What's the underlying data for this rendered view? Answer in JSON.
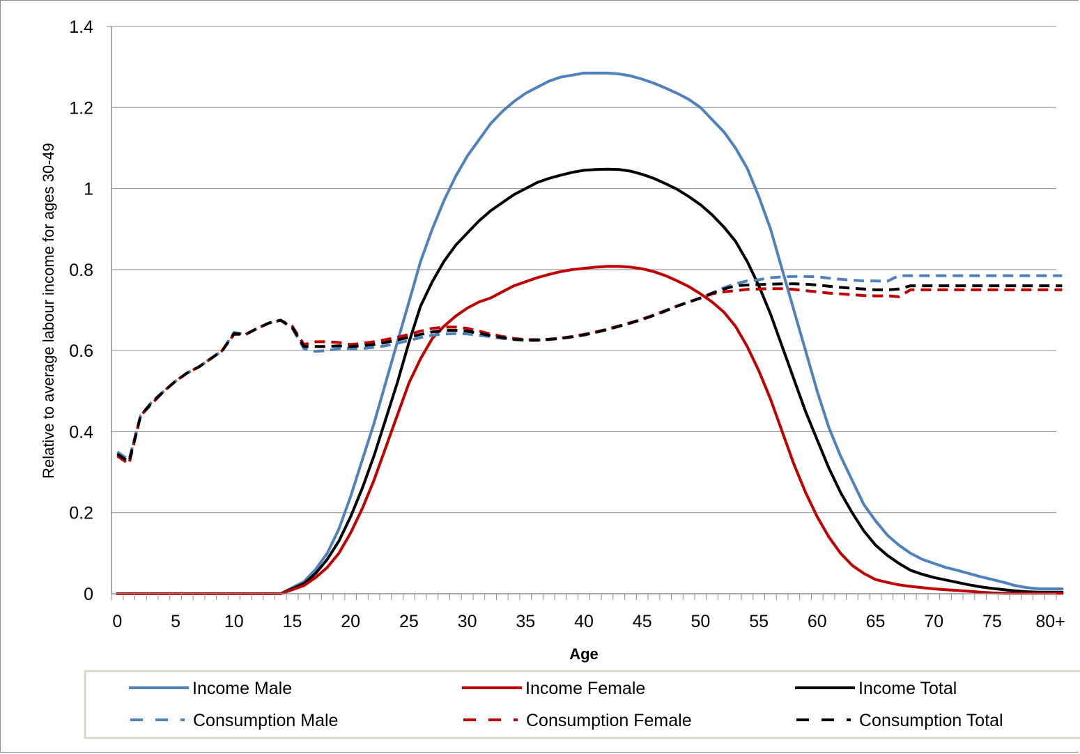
{
  "chart_data": {
    "type": "line",
    "title": "",
    "xlabel": "Age",
    "ylabel": "Relative to average labour income for ages 30-49",
    "x_ticks": [
      "0",
      "5",
      "10",
      "15",
      "20",
      "25",
      "30",
      "35",
      "40",
      "45",
      "50",
      "55",
      "60",
      "65",
      "70",
      "75",
      "80+"
    ],
    "y_ticks": [
      "0",
      "0.2",
      "0.4",
      "0.6",
      "0.8",
      "1",
      "1.2",
      "1.4"
    ],
    "xlim": [
      0,
      81
    ],
    "ylim": [
      0,
      1.4
    ],
    "grid": "horizontal",
    "legend_position": "bottom",
    "x": [
      0,
      1,
      2,
      3,
      4,
      5,
      6,
      7,
      8,
      9,
      10,
      11,
      12,
      13,
      14,
      15,
      16,
      17,
      18,
      19,
      20,
      21,
      22,
      23,
      24,
      25,
      26,
      27,
      28,
      29,
      30,
      31,
      32,
      33,
      34,
      35,
      36,
      37,
      38,
      39,
      40,
      41,
      42,
      43,
      44,
      45,
      46,
      47,
      48,
      49,
      50,
      51,
      52,
      53,
      54,
      55,
      56,
      57,
      58,
      59,
      60,
      61,
      62,
      63,
      64,
      65,
      66,
      67,
      68,
      69,
      70,
      71,
      72,
      73,
      74,
      75,
      76,
      77,
      78,
      79,
      80,
      81
    ],
    "series": [
      {
        "name": "Income Male",
        "color": "#4f81bd",
        "dash": false,
        "values": [
          0,
          0,
          0,
          0,
          0,
          0,
          0,
          0,
          0,
          0,
          0,
          0,
          0,
          0,
          0,
          0.015,
          0.03,
          0.06,
          0.1,
          0.16,
          0.24,
          0.33,
          0.42,
          0.52,
          0.62,
          0.72,
          0.82,
          0.9,
          0.97,
          1.03,
          1.08,
          1.12,
          1.16,
          1.19,
          1.215,
          1.235,
          1.25,
          1.265,
          1.275,
          1.28,
          1.285,
          1.285,
          1.285,
          1.283,
          1.278,
          1.27,
          1.26,
          1.248,
          1.235,
          1.22,
          1.2,
          1.17,
          1.14,
          1.1,
          1.05,
          0.98,
          0.9,
          0.8,
          0.7,
          0.6,
          0.5,
          0.41,
          0.34,
          0.28,
          0.22,
          0.18,
          0.145,
          0.12,
          0.1,
          0.085,
          0.075,
          0.065,
          0.058,
          0.05,
          0.042,
          0.035,
          0.028,
          0.02,
          0.015,
          0.012,
          0.012,
          0.012
        ]
      },
      {
        "name": "Income Female",
        "color": "#c00000",
        "dash": false,
        "values": [
          0,
          0,
          0,
          0,
          0,
          0,
          0,
          0,
          0,
          0,
          0,
          0,
          0,
          0,
          0,
          0.01,
          0.02,
          0.04,
          0.065,
          0.1,
          0.15,
          0.21,
          0.28,
          0.36,
          0.44,
          0.52,
          0.58,
          0.63,
          0.66,
          0.685,
          0.705,
          0.72,
          0.73,
          0.745,
          0.76,
          0.77,
          0.78,
          0.788,
          0.795,
          0.8,
          0.803,
          0.806,
          0.808,
          0.808,
          0.806,
          0.802,
          0.795,
          0.785,
          0.772,
          0.758,
          0.74,
          0.72,
          0.695,
          0.66,
          0.61,
          0.55,
          0.48,
          0.4,
          0.32,
          0.25,
          0.19,
          0.14,
          0.1,
          0.07,
          0.05,
          0.035,
          0.028,
          0.022,
          0.018,
          0.015,
          0.012,
          0.01,
          0.008,
          0.006,
          0.004,
          0.002,
          0.001,
          0.001,
          0.001,
          0.001,
          0.001,
          0.001
        ]
      },
      {
        "name": "Income Total",
        "color": "#000000",
        "dash": false,
        "values": [
          0,
          0,
          0,
          0,
          0,
          0,
          0,
          0,
          0,
          0,
          0,
          0,
          0,
          0,
          0,
          0.012,
          0.025,
          0.05,
          0.085,
          0.13,
          0.19,
          0.26,
          0.34,
          0.43,
          0.52,
          0.62,
          0.71,
          0.77,
          0.82,
          0.86,
          0.89,
          0.92,
          0.945,
          0.965,
          0.985,
          1.0,
          1.015,
          1.025,
          1.033,
          1.04,
          1.045,
          1.047,
          1.048,
          1.047,
          1.043,
          1.035,
          1.025,
          1.012,
          0.998,
          0.98,
          0.96,
          0.935,
          0.905,
          0.87,
          0.82,
          0.76,
          0.69,
          0.61,
          0.53,
          0.45,
          0.38,
          0.31,
          0.25,
          0.2,
          0.155,
          0.12,
          0.095,
          0.075,
          0.058,
          0.048,
          0.04,
          0.034,
          0.028,
          0.022,
          0.017,
          0.013,
          0.01,
          0.007,
          0.005,
          0.004,
          0.004,
          0.004
        ]
      },
      {
        "name": "Consumption Male",
        "color": "#4f81bd",
        "dash": true,
        "values": [
          0.35,
          0.33,
          0.44,
          0.475,
          0.5,
          0.525,
          0.545,
          0.56,
          0.58,
          0.6,
          0.645,
          0.64,
          0.655,
          0.668,
          0.675,
          0.655,
          0.605,
          0.598,
          0.6,
          0.605,
          0.605,
          0.605,
          0.608,
          0.612,
          0.618,
          0.625,
          0.632,
          0.638,
          0.641,
          0.642,
          0.641,
          0.638,
          0.634,
          0.63,
          0.627,
          0.625,
          0.625,
          0.627,
          0.63,
          0.634,
          0.638,
          0.645,
          0.652,
          0.66,
          0.668,
          0.677,
          0.687,
          0.698,
          0.71,
          0.72,
          0.73,
          0.742,
          0.755,
          0.765,
          0.772,
          0.775,
          0.78,
          0.782,
          0.783,
          0.783,
          0.782,
          0.779,
          0.776,
          0.774,
          0.772,
          0.772,
          0.771,
          0.785,
          0.785,
          0.785,
          0.785,
          0.785,
          0.785,
          0.785,
          0.785,
          0.785,
          0.785,
          0.785,
          0.785,
          0.785,
          0.785,
          0.785
        ]
      },
      {
        "name": "Consumption Female",
        "color": "#c00000",
        "dash": true,
        "values": [
          0.34,
          0.32,
          0.44,
          0.47,
          0.5,
          0.525,
          0.545,
          0.56,
          0.58,
          0.6,
          0.64,
          0.64,
          0.655,
          0.668,
          0.675,
          0.66,
          0.615,
          0.622,
          0.622,
          0.62,
          0.615,
          0.618,
          0.622,
          0.627,
          0.633,
          0.64,
          0.648,
          0.655,
          0.658,
          0.658,
          0.655,
          0.648,
          0.641,
          0.635,
          0.63,
          0.627,
          0.627,
          0.628,
          0.631,
          0.635,
          0.64,
          0.646,
          0.653,
          0.661,
          0.669,
          0.678,
          0.688,
          0.699,
          0.71,
          0.72,
          0.73,
          0.74,
          0.745,
          0.748,
          0.751,
          0.752,
          0.753,
          0.753,
          0.751,
          0.748,
          0.745,
          0.742,
          0.74,
          0.738,
          0.736,
          0.735,
          0.735,
          0.733,
          0.75,
          0.75,
          0.75,
          0.75,
          0.75,
          0.75,
          0.75,
          0.75,
          0.75,
          0.75,
          0.75,
          0.75,
          0.75,
          0.75
        ]
      },
      {
        "name": "Consumption Total",
        "color": "#000000",
        "dash": true,
        "values": [
          0.345,
          0.325,
          0.44,
          0.473,
          0.5,
          0.525,
          0.545,
          0.56,
          0.58,
          0.6,
          0.642,
          0.64,
          0.655,
          0.668,
          0.675,
          0.657,
          0.61,
          0.61,
          0.61,
          0.612,
          0.61,
          0.612,
          0.615,
          0.62,
          0.626,
          0.633,
          0.64,
          0.646,
          0.65,
          0.65,
          0.648,
          0.643,
          0.637,
          0.632,
          0.628,
          0.626,
          0.626,
          0.628,
          0.63,
          0.634,
          0.639,
          0.645,
          0.652,
          0.66,
          0.668,
          0.677,
          0.687,
          0.698,
          0.71,
          0.72,
          0.73,
          0.742,
          0.752,
          0.76,
          0.762,
          0.763,
          0.764,
          0.765,
          0.765,
          0.764,
          0.762,
          0.759,
          0.756,
          0.754,
          0.752,
          0.75,
          0.75,
          0.752,
          0.76,
          0.76,
          0.76,
          0.76,
          0.76,
          0.76,
          0.76,
          0.76,
          0.76,
          0.76,
          0.76,
          0.76,
          0.76,
          0.76
        ]
      }
    ]
  },
  "legend": {
    "items": [
      "Income Male",
      "Income Female",
      "Income Total",
      "Consumption Male",
      "Consumption Female",
      "Consumption Total"
    ]
  }
}
